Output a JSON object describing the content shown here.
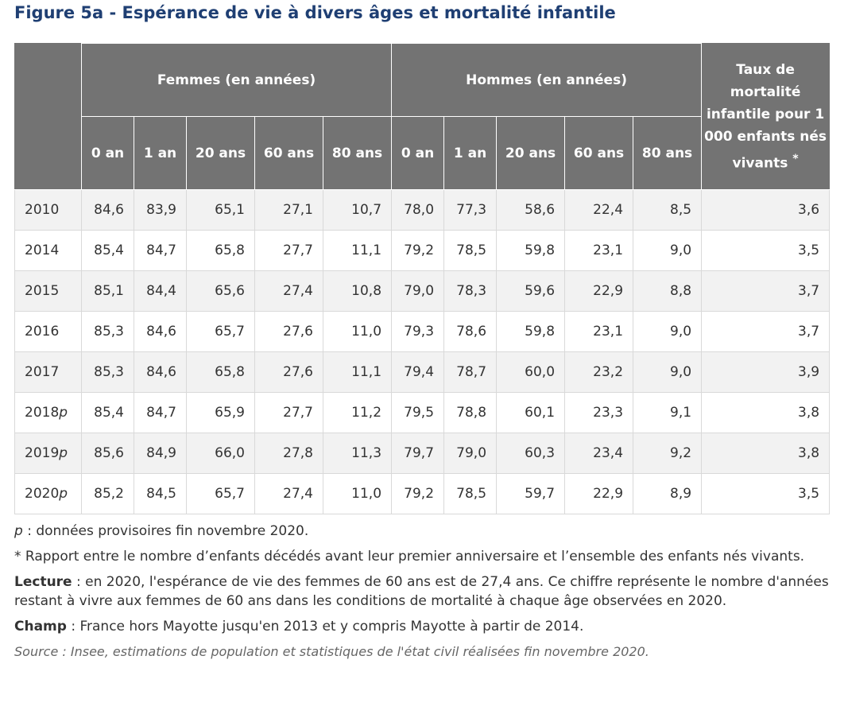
{
  "title": "Figure 5a - Espérance de vie à divers âges et mortalité infantile",
  "table": {
    "group_headers": {
      "femmes": "Femmes (en années)",
      "hommes": "Hommes (en années)",
      "taux": "Taux de mortalité infantile pour 1 000 enfants nés vivants",
      "taux_marker": "*"
    },
    "age_columns": [
      "0 an",
      "1 an",
      "20 ans",
      "60 ans",
      "80 ans",
      "0 an",
      "1 an",
      "20 ans",
      "60 ans",
      "80 ans"
    ],
    "rows": [
      {
        "year": "2010",
        "suffix": "",
        "values": [
          "84,6",
          "83,9",
          "65,1",
          "27,1",
          "10,7",
          "78,0",
          "77,3",
          "58,6",
          "22,4",
          "8,5",
          "3,6"
        ]
      },
      {
        "year": "2014",
        "suffix": "",
        "values": [
          "85,4",
          "84,7",
          "65,8",
          "27,7",
          "11,1",
          "79,2",
          "78,5",
          "59,8",
          "23,1",
          "9,0",
          "3,5"
        ]
      },
      {
        "year": "2015",
        "suffix": "",
        "values": [
          "85,1",
          "84,4",
          "65,6",
          "27,4",
          "10,8",
          "79,0",
          "78,3",
          "59,6",
          "22,9",
          "8,8",
          "3,7"
        ]
      },
      {
        "year": "2016",
        "suffix": "",
        "values": [
          "85,3",
          "84,6",
          "65,7",
          "27,6",
          "11,0",
          "79,3",
          "78,6",
          "59,8",
          "23,1",
          "9,0",
          "3,7"
        ]
      },
      {
        "year": "2017",
        "suffix": "",
        "values": [
          "85,3",
          "84,6",
          "65,8",
          "27,6",
          "11,1",
          "79,4",
          "78,7",
          "60,0",
          "23,2",
          "9,0",
          "3,9"
        ]
      },
      {
        "year": "2018",
        "suffix": "p",
        "values": [
          "85,4",
          "84,7",
          "65,9",
          "27,7",
          "11,2",
          "79,5",
          "78,8",
          "60,1",
          "23,3",
          "9,1",
          "3,8"
        ]
      },
      {
        "year": "2019",
        "suffix": "p",
        "values": [
          "85,6",
          "84,9",
          "66,0",
          "27,8",
          "11,3",
          "79,7",
          "79,0",
          "60,3",
          "23,4",
          "9,2",
          "3,8"
        ]
      },
      {
        "year": "2020",
        "suffix": "p",
        "values": [
          "85,2",
          "84,5",
          "65,7",
          "27,4",
          "11,0",
          "79,2",
          "78,5",
          "59,7",
          "22,9",
          "8,9",
          "3,5"
        ]
      }
    ]
  },
  "notes": {
    "p_marker": "p",
    "p_text": " : données provisoires fin novembre 2020.",
    "star_text": "* Rapport entre le nombre d’enfants décédés avant leur premier anniversaire et l’ensemble des enfants nés vivants.",
    "lecture_label": "Lecture",
    "lecture_text": " : en 2020, l'espérance de vie des femmes de 60 ans est de 27,4 ans. Ce chiffre représente le nombre d'années restant à vivre aux femmes de 60 ans dans les conditions de mortalité à chaque âge observées en 2020.",
    "champ_label": "Champ",
    "champ_text": " : France hors Mayotte jusqu'en 2013 et y compris Mayotte à partir de 2014.",
    "source_text": "Source : Insee, estimations de population et statistiques de l'état civil réalisées fin novembre 2020."
  },
  "colors": {
    "title": "#1f3f73",
    "header_bg": "#737373",
    "row_stripe": "#f2f2f2"
  }
}
